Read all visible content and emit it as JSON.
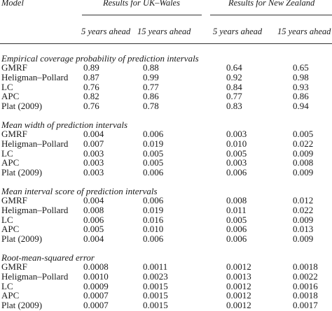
{
  "header": {
    "model_label": "Model",
    "group_uk": "Results for UK–Wales",
    "group_nz": "Results for New Zealand",
    "columns": [
      "5 years ahead",
      "15 years ahead",
      "5 years ahead",
      "15 years ahead"
    ]
  },
  "sections": [
    {
      "title": "Empirical coverage probability of prediction intervals",
      "rows": [
        {
          "model": "GMRF",
          "values": [
            "0.89",
            "0.88",
            "0.64",
            "0.65"
          ]
        },
        {
          "model": "Heligman–Pollard",
          "values": [
            "0.87",
            "0.99",
            "0.92",
            "0.98"
          ]
        },
        {
          "model": "LC",
          "values": [
            "0.76",
            "0.77",
            "0.84",
            "0.93"
          ]
        },
        {
          "model": "APC",
          "values": [
            "0.82",
            "0.86",
            "0.77",
            "0.86"
          ]
        },
        {
          "model": "Plat (2009)",
          "values": [
            "0.76",
            "0.78",
            "0.83",
            "0.94"
          ]
        }
      ]
    },
    {
      "title": "Mean width of prediction intervals",
      "rows": [
        {
          "model": "GMRF",
          "values": [
            "0.004",
            "0.006",
            "0.003",
            "0.005"
          ]
        },
        {
          "model": "Heligman–Pollard",
          "values": [
            "0.007",
            "0.019",
            "0.010",
            "0.022"
          ]
        },
        {
          "model": "LC",
          "values": [
            "0.003",
            "0.005",
            "0.005",
            "0.009"
          ]
        },
        {
          "model": "APC",
          "values": [
            "0.003",
            "0.005",
            "0.003",
            "0.008"
          ]
        },
        {
          "model": "Plat (2009)",
          "values": [
            "0.003",
            "0.006",
            "0.006",
            "0.009"
          ]
        }
      ]
    },
    {
      "title": "Mean interval score of prediction intervals",
      "rows": [
        {
          "model": "GMRF",
          "values": [
            "0.004",
            "0.006",
            "0.008",
            "0.012"
          ]
        },
        {
          "model": "Heligman–Pollard",
          "values": [
            "0.008",
            "0.019",
            "0.011",
            "0.022"
          ]
        },
        {
          "model": "LC",
          "values": [
            "0.006",
            "0.016",
            "0.005",
            "0.009"
          ]
        },
        {
          "model": "APC",
          "values": [
            "0.005",
            "0.010",
            "0.006",
            "0.013"
          ]
        },
        {
          "model": "Plat (2009)",
          "values": [
            "0.004",
            "0.006",
            "0.006",
            "0.009"
          ]
        }
      ]
    },
    {
      "title": "Root-mean-squared error",
      "rows": [
        {
          "model": "GMRF",
          "values": [
            "0.0008",
            "0.0011",
            "0.0012",
            "0.0018"
          ]
        },
        {
          "model": "Heligman–Pollard",
          "values": [
            "0.0010",
            "0.0023",
            "0.0013",
            "0.0022"
          ]
        },
        {
          "model": "LC",
          "values": [
            "0.0009",
            "0.0015",
            "0.0012",
            "0.0016"
          ]
        },
        {
          "model": "APC",
          "values": [
            "0.0007",
            "0.0015",
            "0.0012",
            "0.0018"
          ]
        },
        {
          "model": "Plat (2009)",
          "values": [
            "0.0007",
            "0.0015",
            "0.0012",
            "0.0017"
          ]
        }
      ]
    }
  ]
}
